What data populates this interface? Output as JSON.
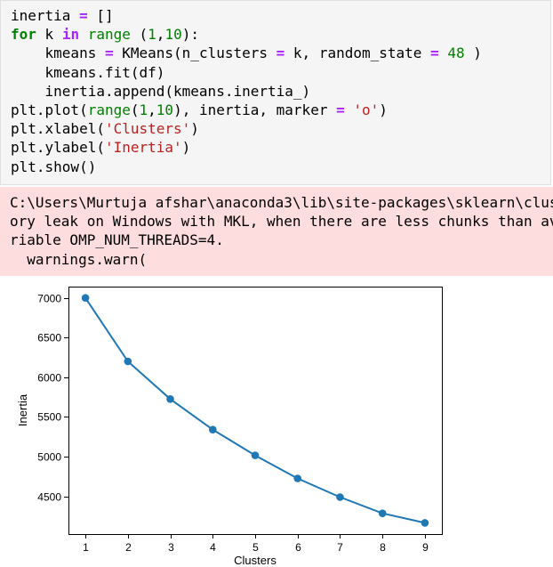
{
  "code_cell": {
    "lines": [
      [
        {
          "t": "inertia "
        },
        {
          "t": "=",
          "c": "op"
        },
        {
          "t": " []"
        }
      ],
      [
        {
          "t": "for",
          "c": "kw"
        },
        {
          "t": " k "
        },
        {
          "t": "in",
          "c": "op"
        },
        {
          "t": " "
        },
        {
          "t": "range",
          "c": "bi"
        },
        {
          "t": " ("
        },
        {
          "t": "1",
          "c": "num"
        },
        {
          "t": ","
        },
        {
          "t": "10",
          "c": "num"
        },
        {
          "t": "):"
        }
      ],
      [
        {
          "t": "    kmeans "
        },
        {
          "t": "=",
          "c": "op"
        },
        {
          "t": " KMeans(n_clusters "
        },
        {
          "t": "=",
          "c": "op"
        },
        {
          "t": " k, random_state "
        },
        {
          "t": "=",
          "c": "op"
        },
        {
          "t": " "
        },
        {
          "t": "48",
          "c": "num"
        },
        {
          "t": " )"
        }
      ],
      [
        {
          "t": "    kmeans.fit(df)"
        }
      ],
      [
        {
          "t": "    inertia.append(kmeans.inertia_)"
        }
      ],
      [
        {
          "t": "plt.plot("
        },
        {
          "t": "range",
          "c": "bi"
        },
        {
          "t": "("
        },
        {
          "t": "1",
          "c": "num"
        },
        {
          "t": ","
        },
        {
          "t": "10",
          "c": "num"
        },
        {
          "t": "), inertia, marker "
        },
        {
          "t": "=",
          "c": "op"
        },
        {
          "t": " "
        },
        {
          "t": "'o'",
          "c": "str"
        },
        {
          "t": ")"
        }
      ],
      [
        {
          "t": "plt.xlabel("
        },
        {
          "t": "'Clusters'",
          "c": "str"
        },
        {
          "t": ")"
        }
      ],
      [
        {
          "t": "plt.ylabel("
        },
        {
          "t": "'Inertia'",
          "c": "str"
        },
        {
          "t": ")"
        }
      ],
      [
        {
          "t": "plt.show()"
        }
      ]
    ]
  },
  "stderr_output": {
    "lines": [
      "C:\\Users\\Murtuja afshar\\anaconda3\\lib\\site-packages\\sklearn\\clus",
      "ory leak on Windows with MKL, when there are less chunks than av",
      "riable OMP_NUM_THREADS=4.",
      "  warnings.warn("
    ]
  },
  "colors": {
    "line": "#1f77b4",
    "stderr_bg": "#fddddd",
    "code_bg": "#f5f5f5"
  },
  "chart_data": {
    "type": "line",
    "x": [
      1,
      2,
      3,
      4,
      5,
      6,
      7,
      8,
      9
    ],
    "y": [
      7000,
      6200,
      5725,
      5340,
      5015,
      4725,
      4490,
      4285,
      4165
    ],
    "marker": "o",
    "xlabel": "Clusters",
    "ylabel": "Inertia",
    "xticks": [
      1,
      2,
      3,
      4,
      5,
      6,
      7,
      8,
      9
    ],
    "yticks": [
      4500,
      5000,
      5500,
      6000,
      6500,
      7000
    ],
    "xlim": [
      0.6,
      9.4
    ],
    "ylim": [
      4024,
      7142
    ],
    "grid": false
  }
}
